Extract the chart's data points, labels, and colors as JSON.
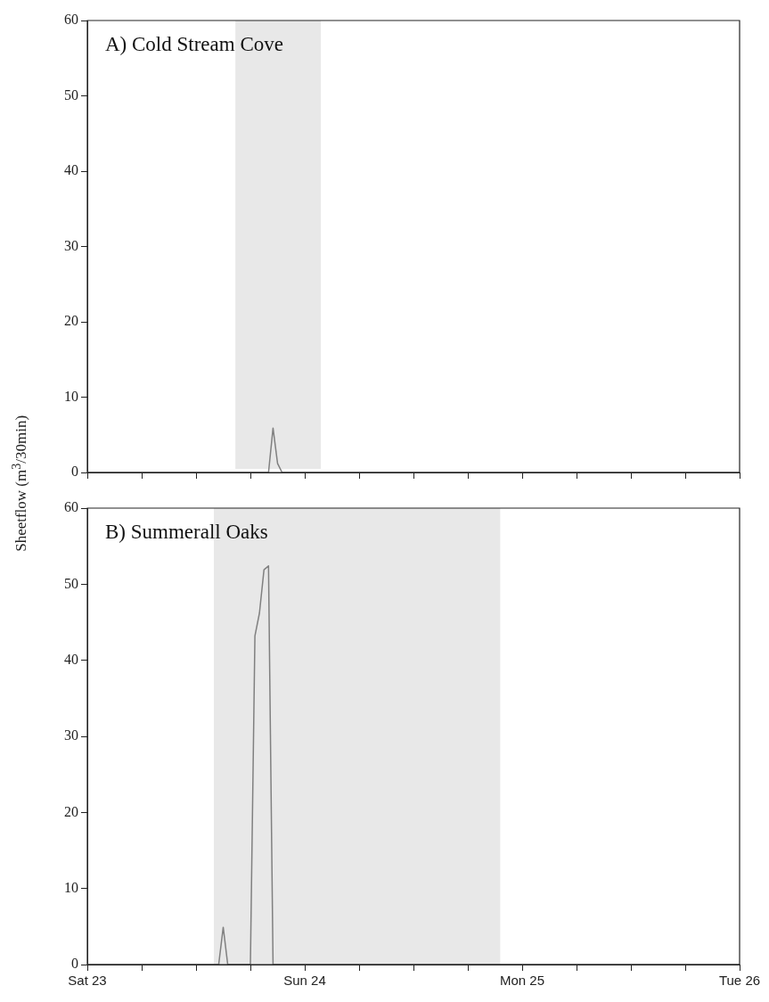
{
  "chart_data": [
    {
      "type": "line",
      "title": "A) Cold Stream Cove",
      "ylabel": "Sheetflow (m$^{3}$/30min)",
      "ylim": [
        0,
        60
      ],
      "yticks": [
        0,
        10,
        20,
        30,
        40,
        50,
        60
      ],
      "categories": [
        null,
        null,
        null,
        null,
        null,
        null,
        null,
        null,
        null,
        null,
        null,
        null,
        null,
        null,
        null,
        null,
        null,
        null,
        null,
        null,
        null,
        null,
        null,
        null,
        null,
        null,
        null,
        null,
        null,
        null,
        null,
        null,
        null,
        null,
        null,
        null,
        null,
        null,
        null,
        null,
        null,
        null,
        null,
        null,
        null,
        null,
        null,
        null,
        null,
        null,
        null,
        null,
        null,
        null,
        null,
        null,
        null,
        null,
        null,
        null,
        null,
        null,
        null,
        null,
        null,
        null,
        null,
        null,
        null,
        null,
        null,
        null,
        null,
        null,
        null,
        null,
        null,
        null,
        null,
        null,
        null,
        null,
        null,
        null,
        null,
        null,
        null,
        null,
        null,
        null,
        null,
        null,
        null,
        null,
        null,
        null,
        null,
        null,
        null,
        null,
        null,
        null,
        null,
        null,
        null,
        null,
        null,
        null,
        null,
        null,
        null,
        null,
        null,
        null,
        null,
        null,
        null,
        null,
        null,
        null,
        null,
        null,
        null,
        null,
        null,
        null,
        null,
        null,
        null,
        null,
        null,
        null,
        null,
        null,
        null,
        null,
        null,
        null,
        null,
        null,
        null,
        null,
        null,
        null,
        null
      ],
      "tick_labels": "y",
      "grid": false,
      "legend": false,
      "marker": "none",
      "line_style": "solid",
      "series": [
        {
          "color": "#808080",
          "values": [
            0,
            0,
            0,
            0,
            0,
            0,
            0,
            0,
            0,
            0,
            0,
            0,
            0,
            0,
            0,
            0,
            0,
            0,
            0,
            0,
            0,
            0,
            0,
            0,
            0,
            0,
            0,
            0,
            0,
            0,
            0,
            0,
            0,
            0,
            0,
            0,
            0,
            0,
            0,
            0,
            0,
            5.9,
            1.2,
            0,
            0,
            0,
            0,
            0,
            0,
            0,
            0,
            0,
            0,
            0,
            0,
            0,
            0,
            0,
            0,
            0,
            0,
            0,
            0,
            0,
            0,
            0,
            0,
            0,
            0,
            0,
            0,
            0,
            0,
            0,
            0,
            0,
            0,
            0,
            0,
            0,
            0,
            0,
            0,
            0,
            0,
            0,
            0,
            0,
            0,
            0,
            0,
            0,
            0,
            0,
            0,
            0,
            0,
            0,
            0,
            0,
            0,
            0,
            0,
            0,
            0,
            0,
            0,
            0,
            0,
            0,
            0,
            0,
            0,
            0,
            0,
            0,
            0,
            0,
            0,
            0,
            0,
            0,
            0,
            0,
            0,
            0,
            0,
            0,
            0,
            0,
            0,
            0,
            0,
            0,
            0,
            0,
            0,
            0,
            0,
            0,
            0,
            0,
            0,
            0,
            0
          ]
        }
      ]
    },
    {
      "type": "line",
      "title": "B) Summerall Oaks",
      "ylim": [
        0,
        60
      ],
      "yticks": [
        0,
        10,
        20,
        30,
        40,
        50,
        60
      ],
      "categories": [
        "Sat 23",
        null,
        null,
        null,
        null,
        null,
        null,
        null,
        null,
        null,
        null,
        null,
        null,
        null,
        null,
        null,
        null,
        null,
        null,
        null,
        null,
        null,
        null,
        null,
        null,
        null,
        null,
        null,
        null,
        null,
        null,
        null,
        null,
        null,
        null,
        null,
        null,
        null,
        null,
        null,
        null,
        null,
        null,
        null,
        null,
        null,
        null,
        null,
        "Sun 24",
        null,
        null,
        null,
        null,
        null,
        null,
        null,
        null,
        null,
        null,
        null,
        null,
        null,
        null,
        null,
        null,
        null,
        null,
        null,
        null,
        null,
        null,
        null,
        null,
        null,
        null,
        null,
        null,
        null,
        null,
        null,
        null,
        null,
        null,
        null,
        null,
        null,
        null,
        null,
        null,
        null,
        null,
        null,
        null,
        null,
        null,
        null,
        "Mon 25",
        null,
        null,
        null,
        null,
        null,
        null,
        null,
        null,
        null,
        null,
        null,
        null,
        null,
        null,
        null,
        null,
        null,
        null,
        null,
        null,
        null,
        null,
        null,
        null,
        null,
        null,
        null,
        null,
        null,
        null,
        null,
        null,
        null,
        null,
        null,
        null,
        null,
        null,
        null,
        null,
        null,
        null,
        null,
        null,
        null,
        null,
        null,
        "Tue 26"
      ],
      "grid": false,
      "legend": false,
      "marker": "none",
      "line_style": "solid",
      "series": [
        {
          "color": "#808080",
          "values": [
            0,
            0,
            0,
            0,
            0,
            0,
            0,
            0,
            0,
            0,
            0,
            0,
            0,
            0,
            0,
            0,
            0,
            0,
            0,
            0,
            0,
            0,
            0,
            0,
            0,
            0,
            0,
            0,
            0,
            0,
            4.9,
            0,
            0,
            0,
            0,
            0,
            0,
            43.2,
            46.2,
            51.9,
            52.4,
            0,
            0,
            0,
            0,
            0,
            0,
            0,
            0,
            0,
            0,
            0,
            0,
            0,
            0,
            0,
            0,
            0,
            0,
            0,
            0,
            0,
            0,
            0,
            0,
            0,
            0,
            0,
            0,
            0,
            0,
            0,
            0,
            0,
            0,
            0,
            0,
            0,
            0,
            0,
            0,
            0,
            0,
            0,
            0,
            0,
            0,
            0,
            0,
            0,
            0,
            0,
            0,
            0,
            0,
            0,
            0,
            0,
            0,
            0,
            0,
            0,
            0,
            0,
            0,
            0,
            0,
            0,
            0,
            0,
            0,
            0,
            0,
            0,
            0,
            0,
            0,
            0,
            0,
            0,
            0,
            0,
            0,
            0,
            0,
            0,
            0,
            0,
            0,
            0,
            0,
            0,
            0,
            0,
            0,
            0,
            0,
            0,
            0,
            0,
            0,
            0,
            0,
            0,
            0
          ]
        }
      ]
    }
  ]
}
